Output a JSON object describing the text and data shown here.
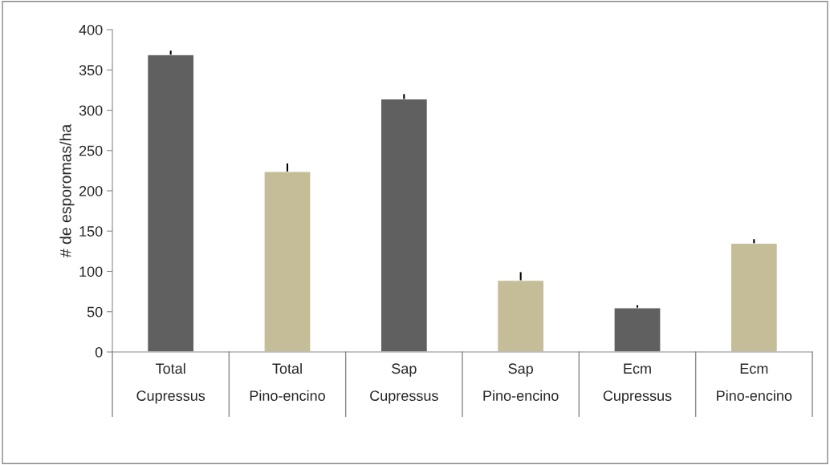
{
  "chart_data": {
    "type": "bar",
    "ylabel": "# de esporomas/ha",
    "categories": [
      "Total\nCupressus",
      "Total\nPino-encino",
      "Sap\nCupressus",
      "Sap\nPino-encino",
      "Ecm\nCupressus",
      "Ecm\nPino-encino"
    ],
    "values": [
      369,
      224,
      314,
      89,
      55,
      135
    ],
    "colors": [
      "#606060",
      "#c4bd97",
      "#606060",
      "#c4bd97",
      "#606060",
      "#c4bd97"
    ],
    "errors": [
      [
        369,
        374
      ],
      [
        224,
        234
      ],
      [
        314,
        320
      ],
      [
        89,
        99
      ],
      [
        55,
        58
      ],
      [
        135,
        140
      ]
    ],
    "ylim": [
      0,
      400
    ],
    "yticks": [
      0,
      50,
      100,
      150,
      200,
      250,
      300,
      350,
      400
    ],
    "grid": false
  }
}
